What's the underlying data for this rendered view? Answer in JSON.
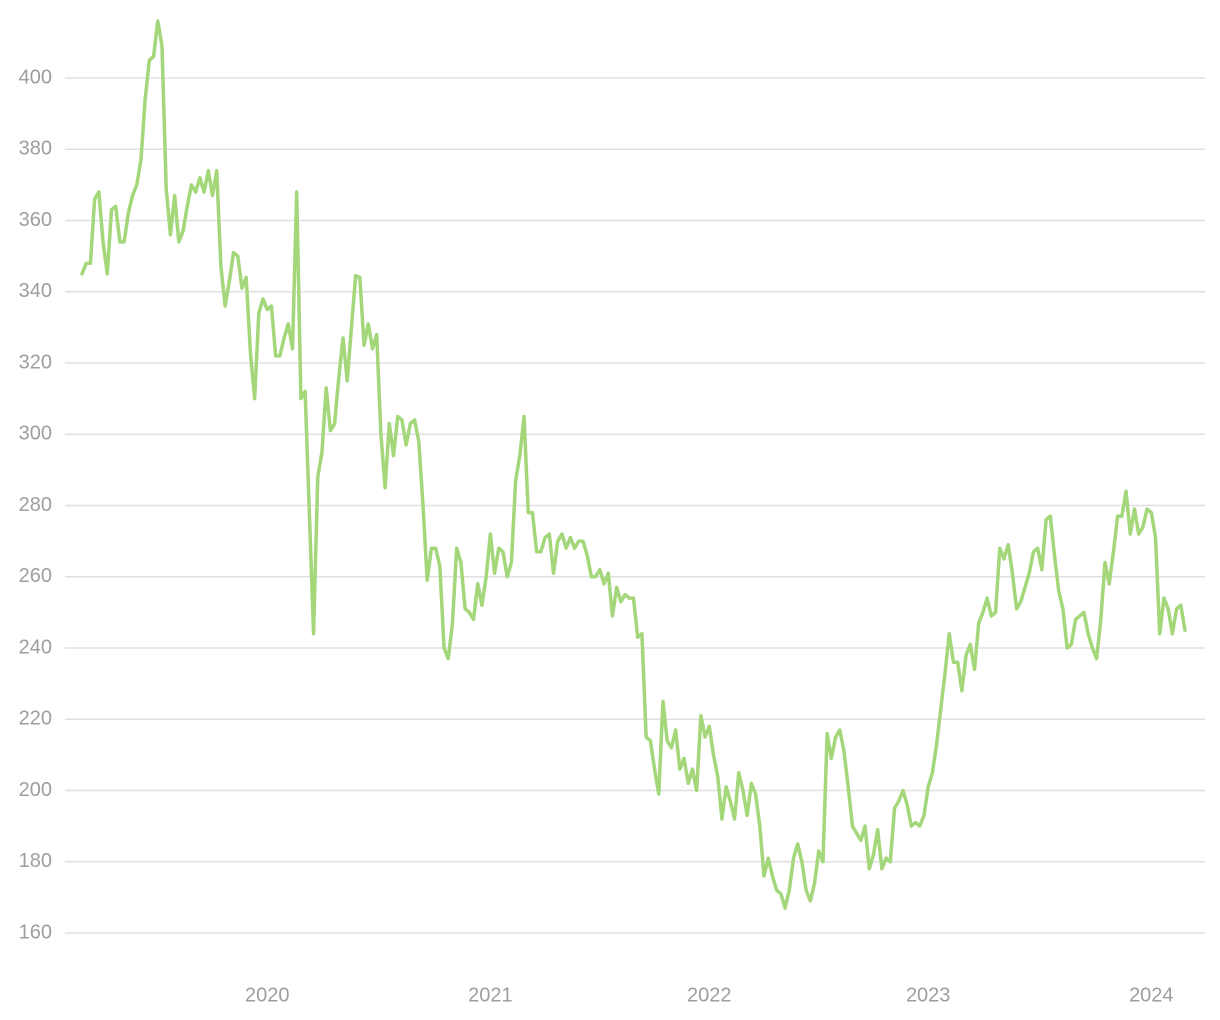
{
  "chart_data": {
    "type": "line",
    "categories": [
      null,
      null,
      null,
      null,
      null,
      null,
      null,
      null,
      null,
      null,
      null,
      null,
      null,
      null,
      null,
      null,
      null,
      null,
      null,
      null,
      null,
      null,
      null,
      null,
      null,
      null,
      null,
      null,
      null,
      null,
      null,
      null,
      null,
      null,
      null,
      null,
      null,
      null,
      null,
      null,
      null,
      null,
      null,
      null,
      "2020",
      null,
      null,
      null,
      null,
      null,
      null,
      null,
      null,
      null,
      null,
      null,
      null,
      null,
      null,
      null,
      null,
      null,
      null,
      null,
      null,
      null,
      null,
      null,
      null,
      null,
      null,
      null,
      null,
      null,
      null,
      null,
      null,
      null,
      null,
      null,
      null,
      null,
      null,
      null,
      null,
      null,
      null,
      null,
      null,
      null,
      null,
      null,
      null,
      null,
      null,
      null,
      null,
      "2021",
      null,
      null,
      null,
      null,
      null,
      null,
      null,
      null,
      null,
      null,
      null,
      null,
      null,
      null,
      null,
      null,
      null,
      null,
      null,
      null,
      null,
      null,
      null,
      null,
      null,
      null,
      null,
      null,
      null,
      null,
      null,
      null,
      null,
      null,
      null,
      null,
      null,
      null,
      null,
      null,
      null,
      null,
      null,
      null,
      null,
      null,
      null,
      null,
      null,
      null,
      null,
      "2022",
      null,
      null,
      null,
      null,
      null,
      null,
      null,
      null,
      null,
      null,
      null,
      null,
      null,
      null,
      null,
      null,
      null,
      null,
      null,
      null,
      null,
      null,
      null,
      null,
      null,
      null,
      null,
      null,
      null,
      null,
      null,
      null,
      null,
      null,
      null,
      null,
      null,
      null,
      null,
      null,
      null,
      null,
      null,
      null,
      null,
      null,
      null,
      null,
      null,
      null,
      null,
      "2023",
      null,
      null,
      null,
      null,
      null,
      null,
      null,
      null,
      null,
      null,
      null,
      null,
      null,
      null,
      null,
      null,
      null,
      null,
      null,
      null,
      null,
      null,
      null,
      null,
      null,
      null,
      null,
      null,
      null,
      null,
      null,
      null,
      null,
      null,
      null,
      null,
      null,
      null,
      null,
      null,
      null,
      null,
      null,
      null,
      null,
      null,
      null,
      null,
      null,
      null,
      null,
      null,
      "2024",
      null,
      null,
      null,
      null,
      null,
      null,
      null,
      null
    ],
    "color": "#a4d67a",
    "values": [
      345,
      348,
      348,
      366,
      368,
      354,
      345,
      363,
      364,
      354,
      354,
      362,
      367,
      370,
      377,
      394,
      405,
      406,
      416,
      409,
      369,
      356,
      367,
      354,
      357,
      364,
      370,
      368,
      372,
      368,
      374,
      367,
      374,
      347,
      336,
      343,
      351,
      350,
      341,
      344,
      323,
      310,
      334,
      338,
      335,
      336,
      322,
      322,
      327,
      331,
      324,
      368,
      310,
      312,
      278,
      244,
      288,
      295,
      313,
      301,
      303,
      316,
      327,
      315,
      330,
      344.5,
      344,
      325,
      331,
      324,
      328,
      300,
      285,
      303,
      294,
      305,
      304,
      297,
      303,
      304,
      298,
      280,
      259,
      268,
      268,
      263,
      240,
      237,
      247,
      268,
      264,
      251,
      250,
      248,
      258,
      252,
      260,
      272,
      261,
      268,
      267,
      260,
      264,
      287,
      294,
      305,
      278,
      278,
      267,
      267,
      271,
      272,
      261,
      270,
      272,
      268,
      271,
      268,
      270,
      270,
      266,
      260,
      260,
      262,
      258,
      261,
      249,
      257,
      253,
      255,
      254,
      254,
      243,
      244,
      215,
      214,
      206,
      199,
      225,
      214,
      212,
      217,
      206,
      209,
      202,
      206,
      200,
      221,
      215,
      218,
      210,
      204,
      192,
      201,
      197,
      192,
      205,
      200,
      193,
      202,
      199,
      190,
      176,
      181,
      176,
      172,
      171,
      167,
      172,
      181,
      185,
      180,
      172,
      169,
      174,
      183,
      180,
      216,
      209,
      215,
      217,
      211,
      201,
      190,
      188,
      186,
      190,
      178,
      182,
      189,
      178,
      181,
      180,
      195,
      197,
      200,
      196,
      190,
      191,
      190,
      193,
      201,
      205,
      213,
      223,
      233,
      244,
      236,
      236,
      228,
      238,
      241,
      234,
      247,
      250,
      254,
      249,
      250,
      268,
      265,
      269,
      261,
      251,
      253,
      257,
      261,
      267,
      268,
      262,
      276,
      277,
      266,
      256,
      251,
      240,
      241,
      248,
      249,
      250,
      244,
      240,
      237,
      248,
      264,
      258,
      267,
      277,
      277,
      284,
      272,
      279,
      272,
      274,
      279,
      278,
      271,
      244,
      254,
      251,
      244,
      251,
      252,
      245
    ],
    "ylim": [
      150,
      420
    ],
    "yticks": [
      160,
      180,
      200,
      220,
      240,
      260,
      280,
      300,
      320,
      340,
      360,
      380,
      400
    ],
    "grid": true
  }
}
